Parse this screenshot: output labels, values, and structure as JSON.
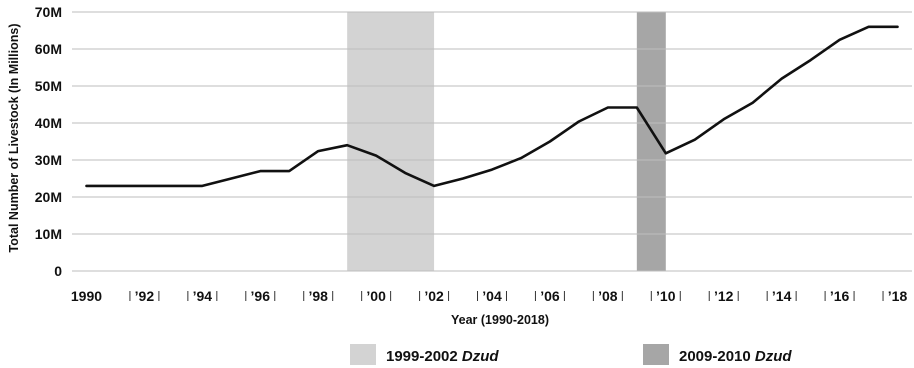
{
  "chart_data": {
    "type": "line",
    "xlabel": "Year (1990-2018)",
    "ylabel": "Total Number of Livestock (In Millions)",
    "ylim": [
      0,
      70
    ],
    "yticks": [
      {
        "value": 0,
        "label": "0"
      },
      {
        "value": 10,
        "label": "10M"
      },
      {
        "value": 20,
        "label": "20M"
      },
      {
        "value": 30,
        "label": "30M"
      },
      {
        "value": 40,
        "label": "40M"
      },
      {
        "value": 50,
        "label": "50M"
      },
      {
        "value": 60,
        "label": "60M"
      },
      {
        "value": 70,
        "label": "70M"
      }
    ],
    "xlim": [
      1989.5,
      2018.5
    ],
    "xticks": [
      {
        "value": 1990,
        "label": "1990"
      },
      {
        "value": 1992,
        "label": "’92"
      },
      {
        "value": 1994,
        "label": "’94"
      },
      {
        "value": 1996,
        "label": "’96"
      },
      {
        "value": 1998,
        "label": "’98"
      },
      {
        "value": 2000,
        "label": "’00"
      },
      {
        "value": 2002,
        "label": "’02"
      },
      {
        "value": 2004,
        "label": "’04"
      },
      {
        "value": 2006,
        "label": "’06"
      },
      {
        "value": 2008,
        "label": "’08"
      },
      {
        "value": 2010,
        "label": "’10"
      },
      {
        "value": 2012,
        "label": "’12"
      },
      {
        "value": 2014,
        "label": "’14"
      },
      {
        "value": 2016,
        "label": "’16"
      },
      {
        "value": 2018,
        "label": "’18"
      }
    ],
    "series": [
      {
        "color": "#111111",
        "x": [
          1990,
          1991,
          1992,
          1993,
          1994,
          1995,
          1996,
          1997,
          1998,
          1999,
          2000,
          2001,
          2002,
          2003,
          2004,
          2005,
          2006,
          2007,
          2008,
          2009,
          2010,
          2011,
          2012,
          2013,
          2014,
          2015,
          2016,
          2017,
          2018
        ],
        "y": [
          23.0,
          23.0,
          23.0,
          23.0,
          23.0,
          25.0,
          27.0,
          27.0,
          32.4,
          34.0,
          31.2,
          26.5,
          23.0,
          25.0,
          27.4,
          30.5,
          35.0,
          40.4,
          44.2,
          44.2,
          31.8,
          35.5,
          41.0,
          45.5,
          52.0,
          57.0,
          62.5,
          66.0,
          66.0
        ]
      }
    ],
    "shaded_periods": [
      {
        "start": 1999,
        "end": 2002,
        "color": "#d3d3d3",
        "label_main": "1999-2002 ",
        "label_italic": "Dzud"
      },
      {
        "start": 2009,
        "end": 2010,
        "color": "#a6a6a6",
        "label_main": "2009-2010 ",
        "label_italic": "Dzud"
      }
    ],
    "grid": true
  }
}
